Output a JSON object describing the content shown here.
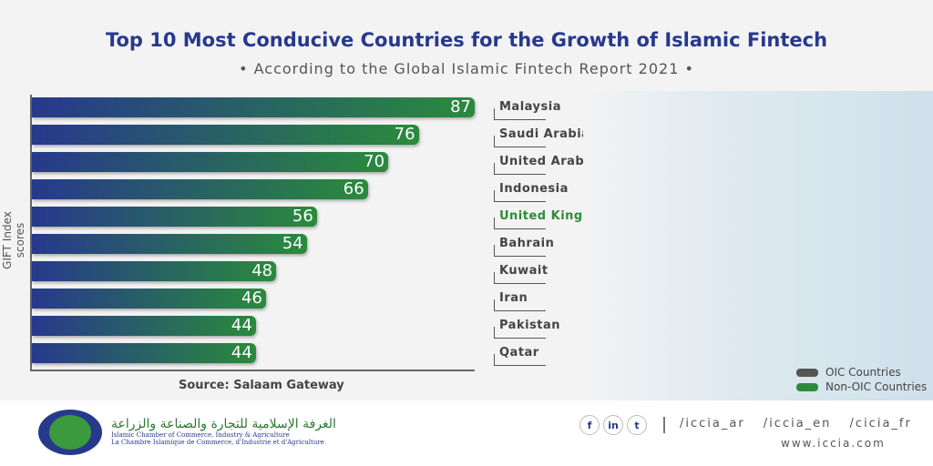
{
  "chart_data": {
    "type": "bar",
    "orientation": "horizontal",
    "title": "Top 10 Most Conducive Countries for the Growth of Islamic Fintech",
    "subtitle": "• According to the Global Islamic Fintech Report 2021 •",
    "ylabel": "GIFT Index scores",
    "source": "Source: Salaam Gateway",
    "categories": [
      "Malaysia",
      "Saudi Arabia",
      "United Arab Emirates",
      "Indonesia",
      "United Kingdom",
      "Bahrain",
      "Kuwait",
      "Iran",
      "Pakistan",
      "Qatar"
    ],
    "values": [
      87,
      76,
      70,
      66,
      56,
      54,
      48,
      46,
      44,
      44
    ],
    "group": [
      "OIC",
      "OIC",
      "OIC",
      "OIC",
      "Non-OIC",
      "OIC",
      "OIC",
      "OIC",
      "OIC",
      "OIC"
    ],
    "xlim": [
      0,
      87
    ],
    "legend": [
      {
        "label": "OIC Countries",
        "color": "#555555"
      },
      {
        "label": "Non-OIC Countries",
        "color": "#2e8b3a"
      }
    ]
  },
  "footer": {
    "org_ar": "الغرفة الإسلامية للتجارة والصناعة والزراعة",
    "org_en": "Islamic Chamber of Commerce, Industry & Agriculture",
    "org_fr": "La Chambre Islamique de Commerce, d'Industrie et d'Agriculture",
    "social": [
      "f",
      "in",
      "t"
    ],
    "handles": "/iccia_ar /iccia_en /cicia_fr",
    "website": "www.iccia.com"
  }
}
